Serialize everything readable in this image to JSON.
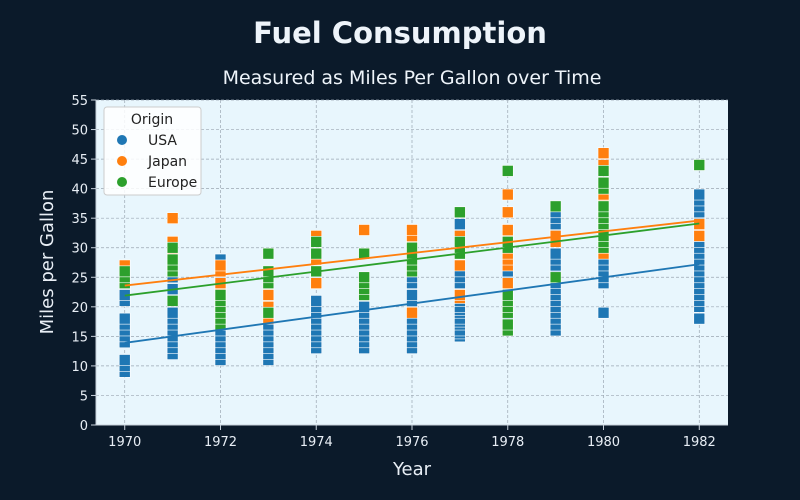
{
  "chart_data": {
    "type": "scatter",
    "title": "Fuel Consumption",
    "subtitle": "Measured as Miles Per Gallon over Time",
    "xlabel": "Year",
    "ylabel": "Miles per Gallon",
    "xlim": [
      1969.4,
      1982.6
    ],
    "ylim": [
      0,
      55
    ],
    "xticks": [
      "1970",
      "1972",
      "1974",
      "1976",
      "1978",
      "1980",
      "1982"
    ],
    "yticks": [
      "0",
      "5",
      "10",
      "15",
      "20",
      "25",
      "30",
      "35",
      "40",
      "45",
      "50",
      "55"
    ],
    "grid": true,
    "legend": {
      "title": "Origin",
      "position": "top-left"
    },
    "marker": "square",
    "series": [
      {
        "name": "USA",
        "color": "#1f77b4",
        "trend": [
          [
            1970,
            13.9
          ],
          [
            1982,
            27.2
          ]
        ],
        "points": [
          [
            1970,
            9
          ],
          [
            1970,
            10
          ],
          [
            1970,
            11
          ],
          [
            1970,
            14
          ],
          [
            1970,
            15
          ],
          [
            1970,
            16
          ],
          [
            1970,
            17
          ],
          [
            1970,
            18
          ],
          [
            1970,
            21
          ],
          [
            1970,
            22
          ],
          [
            1971,
            12
          ],
          [
            1971,
            13
          ],
          [
            1971,
            14
          ],
          [
            1971,
            15
          ],
          [
            1971,
            16
          ],
          [
            1971,
            17
          ],
          [
            1971,
            18
          ],
          [
            1971,
            19
          ],
          [
            1971,
            22
          ],
          [
            1971,
            23
          ],
          [
            1971,
            25
          ],
          [
            1971,
            26
          ],
          [
            1972,
            11
          ],
          [
            1972,
            12
          ],
          [
            1972,
            13
          ],
          [
            1972,
            14
          ],
          [
            1972,
            15
          ],
          [
            1972,
            16
          ],
          [
            1972,
            17
          ],
          [
            1972,
            19
          ],
          [
            1972,
            22
          ],
          [
            1972,
            23
          ],
          [
            1972,
            24
          ],
          [
            1972,
            25
          ],
          [
            1972,
            26
          ],
          [
            1972,
            27
          ],
          [
            1972,
            28
          ],
          [
            1973,
            11
          ],
          [
            1973,
            12
          ],
          [
            1973,
            13
          ],
          [
            1973,
            14
          ],
          [
            1973,
            15
          ],
          [
            1973,
            16
          ],
          [
            1973,
            17
          ],
          [
            1973,
            18
          ],
          [
            1973,
            19
          ],
          [
            1974,
            13
          ],
          [
            1974,
            14
          ],
          [
            1974,
            15
          ],
          [
            1974,
            16
          ],
          [
            1974,
            17
          ],
          [
            1974,
            18
          ],
          [
            1974,
            19
          ],
          [
            1974,
            20
          ],
          [
            1974,
            21
          ],
          [
            1974,
            25
          ],
          [
            1974,
            26
          ],
          [
            1974,
            28
          ],
          [
            1975,
            13
          ],
          [
            1975,
            14
          ],
          [
            1975,
            15
          ],
          [
            1975,
            16
          ],
          [
            1975,
            17
          ],
          [
            1975,
            18
          ],
          [
            1975,
            19
          ],
          [
            1975,
            20
          ],
          [
            1976,
            13
          ],
          [
            1976,
            14
          ],
          [
            1976,
            15
          ],
          [
            1976,
            16
          ],
          [
            1976,
            17
          ],
          [
            1976,
            18
          ],
          [
            1976,
            20
          ],
          [
            1976,
            21
          ],
          [
            1976,
            22
          ],
          [
            1976,
            24
          ],
          [
            1976,
            25
          ],
          [
            1976,
            26
          ],
          [
            1976,
            27
          ],
          [
            1976,
            28
          ],
          [
            1976,
            29
          ],
          [
            1977,
            15
          ],
          [
            1977,
            15.5
          ],
          [
            1977,
            16
          ],
          [
            1977,
            17
          ],
          [
            1977,
            17.5
          ],
          [
            1977,
            18
          ],
          [
            1977,
            19
          ],
          [
            1977,
            19.5
          ],
          [
            1977,
            20
          ],
          [
            1977,
            21
          ],
          [
            1977,
            22
          ],
          [
            1977,
            24
          ],
          [
            1977,
            25
          ],
          [
            1977,
            26
          ],
          [
            1977,
            30
          ],
          [
            1977,
            33
          ],
          [
            1977,
            34
          ],
          [
            1978,
            17
          ],
          [
            1978,
            17.5
          ],
          [
            1978,
            18
          ],
          [
            1978,
            18.5
          ],
          [
            1978,
            19
          ],
          [
            1978,
            19.5
          ],
          [
            1978,
            20
          ],
          [
            1978,
            20.5
          ],
          [
            1978,
            21
          ],
          [
            1978,
            22
          ],
          [
            1978,
            23
          ],
          [
            1978,
            24
          ],
          [
            1978,
            25
          ],
          [
            1978,
            26
          ],
          [
            1979,
            16
          ],
          [
            1979,
            17
          ],
          [
            1979,
            18
          ],
          [
            1979,
            19
          ],
          [
            1979,
            20
          ],
          [
            1979,
            21
          ],
          [
            1979,
            22
          ],
          [
            1979,
            23
          ],
          [
            1979,
            24
          ],
          [
            1979,
            26
          ],
          [
            1979,
            27
          ],
          [
            1979,
            28
          ],
          [
            1979,
            29
          ],
          [
            1979,
            32
          ],
          [
            1979,
            33
          ],
          [
            1979,
            34
          ],
          [
            1979,
            35
          ],
          [
            1979,
            36
          ],
          [
            1980,
            19
          ],
          [
            1980,
            24
          ],
          [
            1980,
            25
          ],
          [
            1980,
            26
          ],
          [
            1980,
            27
          ],
          [
            1980,
            28
          ],
          [
            1980,
            29
          ],
          [
            1982,
            18
          ],
          [
            1982,
            20
          ],
          [
            1982,
            21
          ],
          [
            1982,
            22
          ],
          [
            1982,
            23
          ],
          [
            1982,
            24
          ],
          [
            1982,
            25
          ],
          [
            1982,
            26
          ],
          [
            1982,
            27
          ],
          [
            1982,
            28
          ],
          [
            1982,
            29
          ],
          [
            1982,
            30
          ],
          [
            1982,
            31
          ],
          [
            1982,
            32
          ],
          [
            1982,
            35
          ],
          [
            1982,
            36
          ],
          [
            1982,
            37
          ],
          [
            1982,
            38
          ],
          [
            1982,
            39
          ]
        ]
      },
      {
        "name": "Japan",
        "color": "#ff7f0e",
        "trend": [
          [
            1970,
            23.6
          ],
          [
            1982,
            34.6
          ]
        ],
        "points": [
          [
            1970,
            24
          ],
          [
            1970,
            25
          ],
          [
            1970,
            27
          ],
          [
            1971,
            27
          ],
          [
            1971,
            29
          ],
          [
            1971,
            31
          ],
          [
            1971,
            35
          ],
          [
            1972,
            20
          ],
          [
            1972,
            23
          ],
          [
            1972,
            24
          ],
          [
            1972,
            26
          ],
          [
            1972,
            27
          ],
          [
            1973,
            18
          ],
          [
            1973,
            20
          ],
          [
            1973,
            22
          ],
          [
            1974,
            24
          ],
          [
            1974,
            26
          ],
          [
            1974,
            28
          ],
          [
            1974,
            31
          ],
          [
            1974,
            32
          ],
          [
            1975,
            29
          ],
          [
            1975,
            33
          ],
          [
            1976,
            19
          ],
          [
            1976,
            27
          ],
          [
            1976,
            28
          ],
          [
            1976,
            31
          ],
          [
            1976,
            32
          ],
          [
            1976,
            33
          ],
          [
            1977,
            21.5
          ],
          [
            1977,
            22
          ],
          [
            1977,
            27
          ],
          [
            1977,
            31
          ],
          [
            1977,
            32
          ],
          [
            1978,
            24
          ],
          [
            1978,
            27
          ],
          [
            1978,
            28
          ],
          [
            1978,
            29
          ],
          [
            1978,
            31
          ],
          [
            1978,
            32
          ],
          [
            1978,
            33
          ],
          [
            1978,
            36
          ],
          [
            1978,
            39
          ],
          [
            1979,
            31
          ],
          [
            1979,
            32
          ],
          [
            1980,
            29
          ],
          [
            1980,
            31
          ],
          [
            1980,
            32
          ],
          [
            1980,
            33
          ],
          [
            1980,
            34
          ],
          [
            1980,
            35
          ],
          [
            1980,
            36
          ],
          [
            1980,
            37
          ],
          [
            1980,
            38
          ],
          [
            1980,
            39
          ],
          [
            1980,
            44
          ],
          [
            1980,
            46
          ],
          [
            1982,
            32
          ],
          [
            1982,
            34
          ]
        ]
      },
      {
        "name": "Europe",
        "color": "#2ca02c",
        "trend": [
          [
            1970,
            21.9
          ],
          [
            1982,
            34.1
          ]
        ],
        "points": [
          [
            1970,
            24
          ],
          [
            1970,
            25
          ],
          [
            1970,
            26
          ],
          [
            1971,
            21
          ],
          [
            1971,
            26
          ],
          [
            1971,
            27
          ],
          [
            1971,
            28
          ],
          [
            1971,
            30
          ],
          [
            1972,
            17
          ],
          [
            1972,
            18
          ],
          [
            1972,
            19
          ],
          [
            1972,
            20
          ],
          [
            1972,
            21
          ],
          [
            1972,
            22
          ],
          [
            1973,
            19
          ],
          [
            1973,
            24
          ],
          [
            1973,
            25
          ],
          [
            1973,
            26
          ],
          [
            1973,
            29
          ],
          [
            1974,
            26
          ],
          [
            1974,
            29
          ],
          [
            1974,
            31
          ],
          [
            1975,
            22
          ],
          [
            1975,
            23
          ],
          [
            1975,
            24
          ],
          [
            1975,
            25
          ],
          [
            1975,
            29
          ],
          [
            1976,
            26
          ],
          [
            1976,
            27
          ],
          [
            1976,
            28
          ],
          [
            1976,
            29
          ],
          [
            1976,
            30
          ],
          [
            1977,
            29
          ],
          [
            1977,
            30
          ],
          [
            1977,
            31
          ],
          [
            1977,
            36
          ],
          [
            1978,
            16
          ],
          [
            1978,
            17
          ],
          [
            1978,
            19
          ],
          [
            1978,
            20
          ],
          [
            1978,
            21
          ],
          [
            1978,
            22
          ],
          [
            1978,
            30
          ],
          [
            1978,
            31
          ],
          [
            1978,
            43
          ],
          [
            1979,
            25
          ],
          [
            1979,
            37
          ],
          [
            1980,
            30
          ],
          [
            1980,
            31
          ],
          [
            1980,
            32
          ],
          [
            1980,
            33
          ],
          [
            1980,
            34
          ],
          [
            1980,
            35
          ],
          [
            1980,
            36
          ],
          [
            1980,
            37
          ],
          [
            1980,
            40
          ],
          [
            1980,
            41
          ],
          [
            1980,
            43
          ],
          [
            1982,
            44
          ]
        ]
      }
    ]
  }
}
